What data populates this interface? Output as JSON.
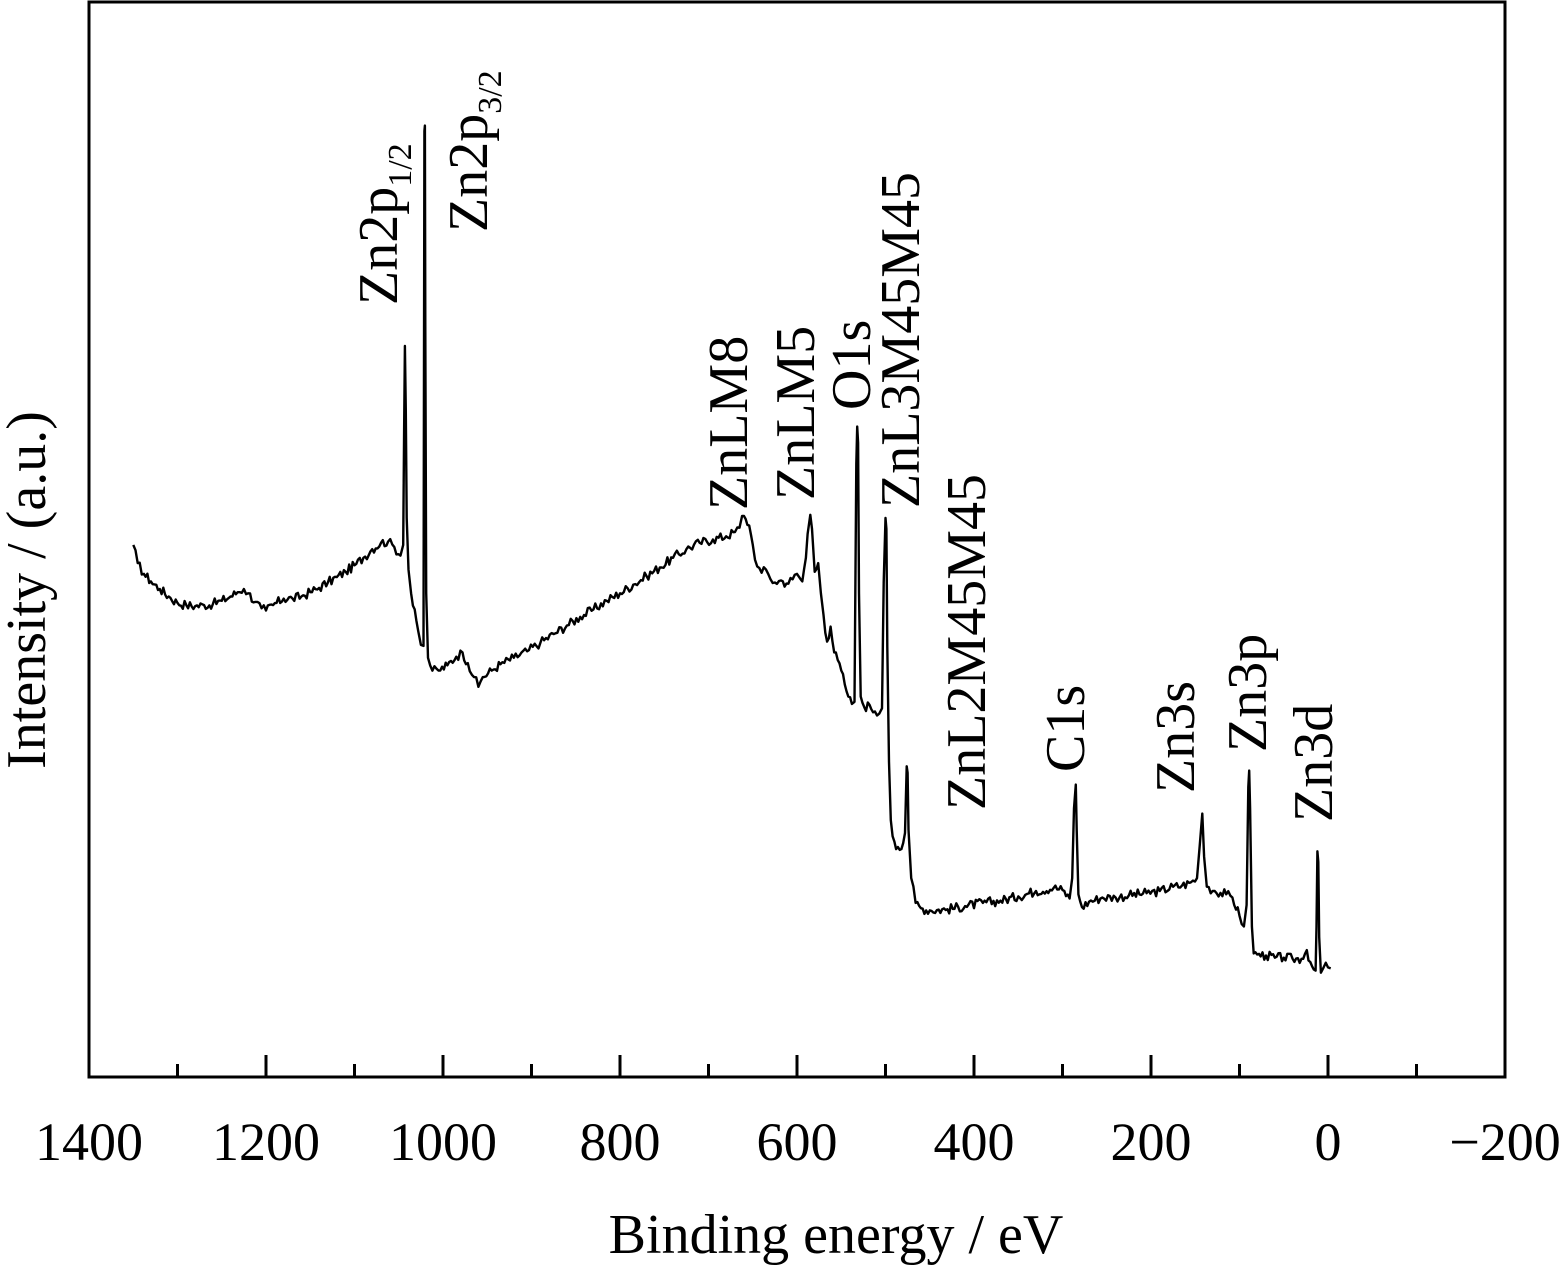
{
  "chart_data": {
    "type": "line",
    "title": "",
    "xlabel": "Binding energy / eV",
    "ylabel": "Intensity / (a.u.)",
    "xlim": [
      1400,
      -200
    ],
    "x_reversed": true,
    "xticks": [
      {
        "value": 1400,
        "label": "1400"
      },
      {
        "value": 1200,
        "label": "1200"
      },
      {
        "value": 1000,
        "label": "1000"
      },
      {
        "value": 800,
        "label": "800"
      },
      {
        "value": 600,
        "label": "600"
      },
      {
        "value": 400,
        "label": "400"
      },
      {
        "value": 200,
        "label": "200"
      },
      {
        "value": 0,
        "label": "0"
      },
      {
        "value": -200,
        "label": "−200"
      }
    ],
    "minor_xticks": [
      1300,
      1100,
      900,
      700,
      500,
      300,
      100,
      -100
    ],
    "y_ticks_shown": false,
    "ylim": [
      0,
      100
    ],
    "grid": false,
    "legend": "none",
    "line_color": "#000000",
    "series": [
      {
        "points": [
          [
            1350,
            49.5
          ],
          [
            1345,
            47.8
          ],
          [
            1338,
            46.8
          ],
          [
            1330,
            46.1
          ],
          [
            1320,
            45.4
          ],
          [
            1310,
            44.7
          ],
          [
            1300,
            44.1
          ],
          [
            1290,
            43.9
          ],
          [
            1280,
            43.8
          ],
          [
            1270,
            43.9
          ],
          [
            1260,
            44.0
          ],
          [
            1250,
            44.3
          ],
          [
            1240,
            44.7
          ],
          [
            1232,
            45.1
          ],
          [
            1225,
            45.4
          ],
          [
            1220,
            45.0
          ],
          [
            1212,
            44.2
          ],
          [
            1205,
            43.6
          ],
          [
            1200,
            43.4
          ],
          [
            1192,
            43.9
          ],
          [
            1180,
            44.5
          ],
          [
            1170,
            44.5
          ],
          [
            1160,
            44.7
          ],
          [
            1150,
            45.1
          ],
          [
            1140,
            45.5
          ],
          [
            1130,
            46.0
          ],
          [
            1120,
            46.5
          ],
          [
            1110,
            47.0
          ],
          [
            1100,
            47.6
          ],
          [
            1090,
            48.3
          ],
          [
            1080,
            49.1
          ],
          [
            1070,
            49.7
          ],
          [
            1062,
            49.8
          ],
          [
            1055,
            49.3
          ],
          [
            1048,
            48.5
          ],
          [
            1045,
            49.5
          ],
          [
            1044,
            60.0
          ],
          [
            1043,
            68.0
          ],
          [
            1042,
            62.0
          ],
          [
            1041,
            52.0
          ],
          [
            1039,
            47.2
          ],
          [
            1036,
            45.0
          ],
          [
            1032,
            43.5
          ],
          [
            1028,
            41.5
          ],
          [
            1025,
            40.2
          ],
          [
            1022,
            40.1
          ],
          [
            1021,
            88.0
          ],
          [
            1020.5,
            88.5
          ],
          [
            1020,
            70.0
          ],
          [
            1019,
            45.0
          ],
          [
            1017,
            39.0
          ],
          [
            1012,
            37.8
          ],
          [
            1005,
            37.8
          ],
          [
            995,
            38.3
          ],
          [
            985,
            39.1
          ],
          [
            978,
            39.5
          ],
          [
            972,
            38.5
          ],
          [
            965,
            37.2
          ],
          [
            960,
            36.3
          ],
          [
            955,
            37.2
          ],
          [
            945,
            37.8
          ],
          [
            935,
            38.4
          ],
          [
            920,
            39.0
          ],
          [
            905,
            39.6
          ],
          [
            890,
            40.4
          ],
          [
            875,
            41.2
          ],
          [
            860,
            42.0
          ],
          [
            845,
            42.8
          ],
          [
            830,
            43.5
          ],
          [
            815,
            44.3
          ],
          [
            800,
            45.0
          ],
          [
            785,
            45.8
          ],
          [
            770,
            46.6
          ],
          [
            755,
            47.4
          ],
          [
            740,
            48.3
          ],
          [
            725,
            49.1
          ],
          [
            710,
            49.7
          ],
          [
            695,
            50.0
          ],
          [
            680,
            50.3
          ],
          [
            670,
            50.7
          ],
          [
            665,
            51.1
          ],
          [
            662,
            52.2
          ],
          [
            658,
            51.9
          ],
          [
            654,
            51.3
          ],
          [
            650,
            49.5
          ],
          [
            645,
            47.5
          ],
          [
            640,
            46.9
          ],
          [
            635,
            47.2
          ],
          [
            630,
            46.3
          ],
          [
            625,
            46.0
          ],
          [
            618,
            46.2
          ],
          [
            612,
            45.9
          ],
          [
            605,
            46.3
          ],
          [
            600,
            46.8
          ],
          [
            594,
            46.1
          ],
          [
            590,
            48.3
          ],
          [
            588,
            50.5
          ],
          [
            585,
            52.3
          ],
          [
            583,
            51.0
          ],
          [
            580,
            47.0
          ],
          [
            576,
            47.8
          ],
          [
            573,
            45.0
          ],
          [
            570,
            43.0
          ],
          [
            566,
            40.5
          ],
          [
            562,
            41.9
          ],
          [
            558,
            39.5
          ],
          [
            554,
            38.8
          ],
          [
            550,
            37.8
          ],
          [
            546,
            36.5
          ],
          [
            542,
            35.4
          ],
          [
            538,
            34.7
          ],
          [
            535,
            34.9
          ],
          [
            533,
            57.0
          ],
          [
            532,
            60.5
          ],
          [
            531,
            59.0
          ],
          [
            530,
            45.0
          ],
          [
            528,
            35.4
          ],
          [
            524,
            34.4
          ],
          [
            518,
            34.6
          ],
          [
            512,
            34.0
          ],
          [
            507,
            33.8
          ],
          [
            504,
            34.3
          ],
          [
            502,
            46.0
          ],
          [
            500,
            52.0
          ],
          [
            499,
            51.0
          ],
          [
            498,
            40.0
          ],
          [
            496,
            29.3
          ],
          [
            494,
            23.9
          ],
          [
            492,
            22.4
          ],
          [
            490,
            21.9
          ],
          [
            486,
            21.4
          ],
          [
            482,
            21.2
          ],
          [
            478,
            22.7
          ],
          [
            476,
            28.9
          ],
          [
            475,
            28.3
          ],
          [
            474,
            23.0
          ],
          [
            471,
            18.5
          ],
          [
            466,
            16.2
          ],
          [
            460,
            15.7
          ],
          [
            450,
            15.5
          ],
          [
            430,
            15.6
          ],
          [
            410,
            15.9
          ],
          [
            390,
            16.2
          ],
          [
            370,
            16.4
          ],
          [
            350,
            16.8
          ],
          [
            330,
            17.3
          ],
          [
            310,
            17.6
          ],
          [
            300,
            17.4
          ],
          [
            292,
            16.6
          ],
          [
            289,
            18.5
          ],
          [
            287,
            25.0
          ],
          [
            285,
            27.2
          ],
          [
            284,
            23.0
          ],
          [
            282,
            17.0
          ],
          [
            278,
            15.8
          ],
          [
            270,
            16.3
          ],
          [
            255,
            16.7
          ],
          [
            240,
            16.7
          ],
          [
            225,
            16.9
          ],
          [
            205,
            17.1
          ],
          [
            190,
            17.3
          ],
          [
            175,
            17.7
          ],
          [
            165,
            17.8
          ],
          [
            155,
            18.1
          ],
          [
            148,
            18.5
          ],
          [
            145,
            21.5
          ],
          [
            142,
            24.5
          ],
          [
            140,
            20.5
          ],
          [
            137,
            17.7
          ],
          [
            128,
            17.3
          ],
          [
            115,
            17.0
          ],
          [
            108,
            16.7
          ],
          [
            100,
            15.0
          ],
          [
            95,
            14.0
          ],
          [
            92,
            16.0
          ],
          [
            90,
            27.0
          ],
          [
            89,
            28.5
          ],
          [
            88,
            25.0
          ],
          [
            86,
            14.0
          ],
          [
            84,
            11.5
          ],
          [
            80,
            11.4
          ],
          [
            70,
            11.3
          ],
          [
            60,
            11.1
          ],
          [
            50,
            11.1
          ],
          [
            40,
            11.0
          ],
          [
            30,
            11.0
          ],
          [
            24,
            11.8
          ],
          [
            20,
            10.7
          ],
          [
            16,
            10.0
          ],
          [
            14,
            9.9
          ],
          [
            13,
            14.0
          ],
          [
            12,
            21.0
          ],
          [
            11,
            20.0
          ],
          [
            10,
            13.0
          ],
          [
            8,
            9.7
          ],
          [
            5,
            10.2
          ],
          [
            0,
            10.2
          ],
          [
            -3,
            10.1
          ]
        ]
      }
    ],
    "annotations": [
      {
        "text": "Zn2p",
        "sub": "1/2",
        "x": 1044
      },
      {
        "text": "Zn2p",
        "sub": "3/2",
        "x": 1021
      },
      {
        "text": "ZnLM8",
        "x": 658
      },
      {
        "text": "ZnLM5",
        "x": 588
      },
      {
        "text": "O1s",
        "x": 532
      },
      {
        "text": "ZnL3M45M45",
        "x": 500
      },
      {
        "text": "ZnL2M45M45",
        "x": 475
      },
      {
        "text": "C1s",
        "x": 285
      },
      {
        "text": "Zn3s",
        "x": 142
      },
      {
        "text": "Zn3p",
        "x": 89
      },
      {
        "text": "Zn3d",
        "x": 12
      }
    ]
  }
}
